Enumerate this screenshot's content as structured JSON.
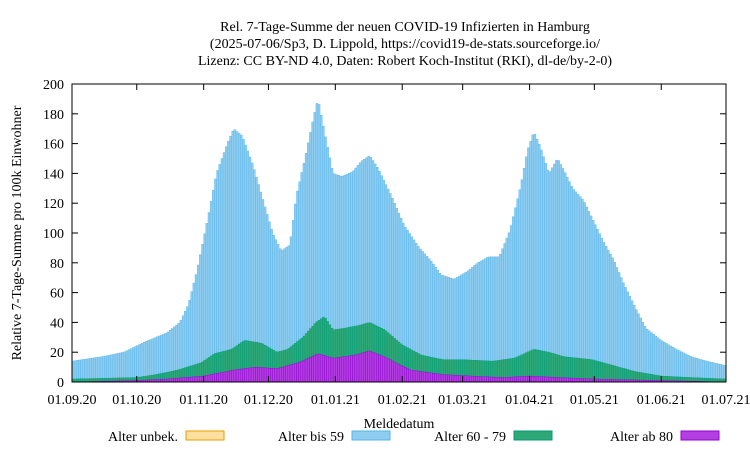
{
  "chart_data": {
    "type": "bar",
    "stacked": true,
    "title": [
      "Rel. 7-Tage-Summe der neuen COVID-19 Infizierten in Hamburg",
      "(2025-07-06/Sp3, D. Lippold, https://covid19-de-stats.sourceforge.io/",
      "Lizenz: CC BY-ND 4.0, Daten: Robert Koch-Institut (RKI), dl-de/by-2-0)"
    ],
    "xlabel": "Meldedatum",
    "ylabel": "Relative 7-Tage-Summe pro 100k Einwohner",
    "ylim": [
      0,
      200
    ],
    "yticks": [
      0,
      20,
      40,
      60,
      80,
      100,
      120,
      140,
      160,
      180,
      200
    ],
    "xlim": [
      "2020-09-01",
      "2021-07-01"
    ],
    "xticks": [
      {
        "date": "2020-09-01",
        "label": "01.09.20"
      },
      {
        "date": "2020-10-01",
        "label": "01.10.20"
      },
      {
        "date": "2020-11-01",
        "label": "01.11.20"
      },
      {
        "date": "2020-12-01",
        "label": "01.12.20"
      },
      {
        "date": "2021-01-01",
        "label": "01.01.21"
      },
      {
        "date": "2021-02-01",
        "label": "01.02.21"
      },
      {
        "date": "2021-03-01",
        "label": "01.03.21"
      },
      {
        "date": "2021-04-01",
        "label": "01.04.21"
      },
      {
        "date": "2021-05-01",
        "label": "01.05.21"
      },
      {
        "date": "2021-06-01",
        "label": "01.06.21"
      },
      {
        "date": "2021-07-01",
        "label": "01.07.21"
      }
    ],
    "grid": false,
    "legend_position": "bottom",
    "series": [
      {
        "name": "Alter unbek.",
        "fill": "#fde0a0",
        "stroke": "#e69f00",
        "points": [
          [
            "2020-09-01",
            0
          ],
          [
            "2021-07-01",
            0
          ]
        ]
      },
      {
        "name": "Alter bis 59",
        "fill": "#8ecdf0",
        "stroke": "#56b4e9",
        "points": [
          [
            "2020-09-01",
            14
          ],
          [
            "2020-09-15",
            17
          ],
          [
            "2020-09-25",
            20
          ],
          [
            "2020-10-05",
            27
          ],
          [
            "2020-10-15",
            33
          ],
          [
            "2020-10-21",
            40
          ],
          [
            "2020-10-25",
            52
          ],
          [
            "2020-10-29",
            75
          ],
          [
            "2020-11-03",
            110
          ],
          [
            "2020-11-07",
            140
          ],
          [
            "2020-11-12",
            160
          ],
          [
            "2020-11-15",
            170
          ],
          [
            "2020-11-19",
            165
          ],
          [
            "2020-11-24",
            145
          ],
          [
            "2020-11-28",
            125
          ],
          [
            "2020-12-03",
            100
          ],
          [
            "2020-12-07",
            88
          ],
          [
            "2020-12-11",
            92
          ],
          [
            "2020-12-14",
            125
          ],
          [
            "2020-12-18",
            150
          ],
          [
            "2020-12-22",
            178
          ],
          [
            "2020-12-24",
            190
          ],
          [
            "2020-12-27",
            168
          ],
          [
            "2020-12-31",
            140
          ],
          [
            "2021-01-04",
            138
          ],
          [
            "2021-01-09",
            141
          ],
          [
            "2021-01-13",
            148
          ],
          [
            "2021-01-17",
            152
          ],
          [
            "2021-01-21",
            143
          ],
          [
            "2021-01-27",
            125
          ],
          [
            "2021-02-02",
            105
          ],
          [
            "2021-02-09",
            90
          ],
          [
            "2021-02-14",
            82
          ],
          [
            "2021-02-19",
            72
          ],
          [
            "2021-02-25",
            69
          ],
          [
            "2021-03-03",
            74
          ],
          [
            "2021-03-08",
            80
          ],
          [
            "2021-03-13",
            84
          ],
          [
            "2021-03-18",
            84
          ],
          [
            "2021-03-23",
            102
          ],
          [
            "2021-03-28",
            132
          ],
          [
            "2021-03-31",
            155
          ],
          [
            "2021-04-03",
            168
          ],
          [
            "2021-04-06",
            158
          ],
          [
            "2021-04-10",
            140
          ],
          [
            "2021-04-14",
            150
          ],
          [
            "2021-04-17",
            142
          ],
          [
            "2021-04-21",
            130
          ],
          [
            "2021-04-26",
            122
          ],
          [
            "2021-04-30",
            110
          ],
          [
            "2021-05-05",
            95
          ],
          [
            "2021-05-10",
            82
          ],
          [
            "2021-05-15",
            65
          ],
          [
            "2021-05-20",
            50
          ],
          [
            "2021-05-25",
            36
          ],
          [
            "2021-06-01",
            28
          ],
          [
            "2021-06-08",
            22
          ],
          [
            "2021-06-15",
            17
          ],
          [
            "2021-06-22",
            14
          ],
          [
            "2021-07-01",
            11
          ]
        ]
      },
      {
        "name": "Alter 60 - 79",
        "fill": "#2fa878",
        "stroke": "#009e73",
        "points": [
          [
            "2020-09-01",
            2
          ],
          [
            "2020-10-01",
            3
          ],
          [
            "2020-10-10",
            5
          ],
          [
            "2020-10-20",
            8
          ],
          [
            "2020-10-31",
            13
          ],
          [
            "2020-11-06",
            19
          ],
          [
            "2020-11-14",
            22
          ],
          [
            "2020-11-20",
            28
          ],
          [
            "2020-11-28",
            26
          ],
          [
            "2020-12-05",
            20
          ],
          [
            "2020-12-10",
            22
          ],
          [
            "2020-12-17",
            30
          ],
          [
            "2020-12-23",
            40
          ],
          [
            "2020-12-27",
            44
          ],
          [
            "2020-12-31",
            35
          ],
          [
            "2021-01-05",
            36
          ],
          [
            "2021-01-12",
            38
          ],
          [
            "2021-01-17",
            40
          ],
          [
            "2021-01-24",
            35
          ],
          [
            "2021-02-01",
            25
          ],
          [
            "2021-02-10",
            18
          ],
          [
            "2021-02-20",
            15
          ],
          [
            "2021-03-01",
            15
          ],
          [
            "2021-03-15",
            14
          ],
          [
            "2021-03-25",
            16
          ],
          [
            "2021-04-03",
            22
          ],
          [
            "2021-04-10",
            20
          ],
          [
            "2021-04-17",
            17
          ],
          [
            "2021-04-30",
            15
          ],
          [
            "2021-05-10",
            11
          ],
          [
            "2021-05-20",
            7
          ],
          [
            "2021-06-01",
            4
          ],
          [
            "2021-06-15",
            3
          ],
          [
            "2021-07-01",
            2
          ]
        ]
      },
      {
        "name": "Alter ab 80",
        "fill": "#b33fe0",
        "stroke": "#9400d3",
        "points": [
          [
            "2020-09-01",
            0
          ],
          [
            "2020-10-01",
            1
          ],
          [
            "2020-10-15",
            2
          ],
          [
            "2020-11-01",
            4
          ],
          [
            "2020-11-15",
            8
          ],
          [
            "2020-11-25",
            10
          ],
          [
            "2020-12-05",
            9
          ],
          [
            "2020-12-15",
            13
          ],
          [
            "2020-12-24",
            19
          ],
          [
            "2020-12-31",
            16
          ],
          [
            "2021-01-10",
            18
          ],
          [
            "2021-01-17",
            21
          ],
          [
            "2021-01-25",
            16
          ],
          [
            "2021-02-05",
            8
          ],
          [
            "2021-02-20",
            5
          ],
          [
            "2021-03-05",
            4
          ],
          [
            "2021-03-20",
            3
          ],
          [
            "2021-04-01",
            4
          ],
          [
            "2021-04-15",
            3
          ],
          [
            "2021-05-01",
            2
          ],
          [
            "2021-06-01",
            1
          ],
          [
            "2021-07-01",
            0
          ]
        ]
      }
    ]
  }
}
